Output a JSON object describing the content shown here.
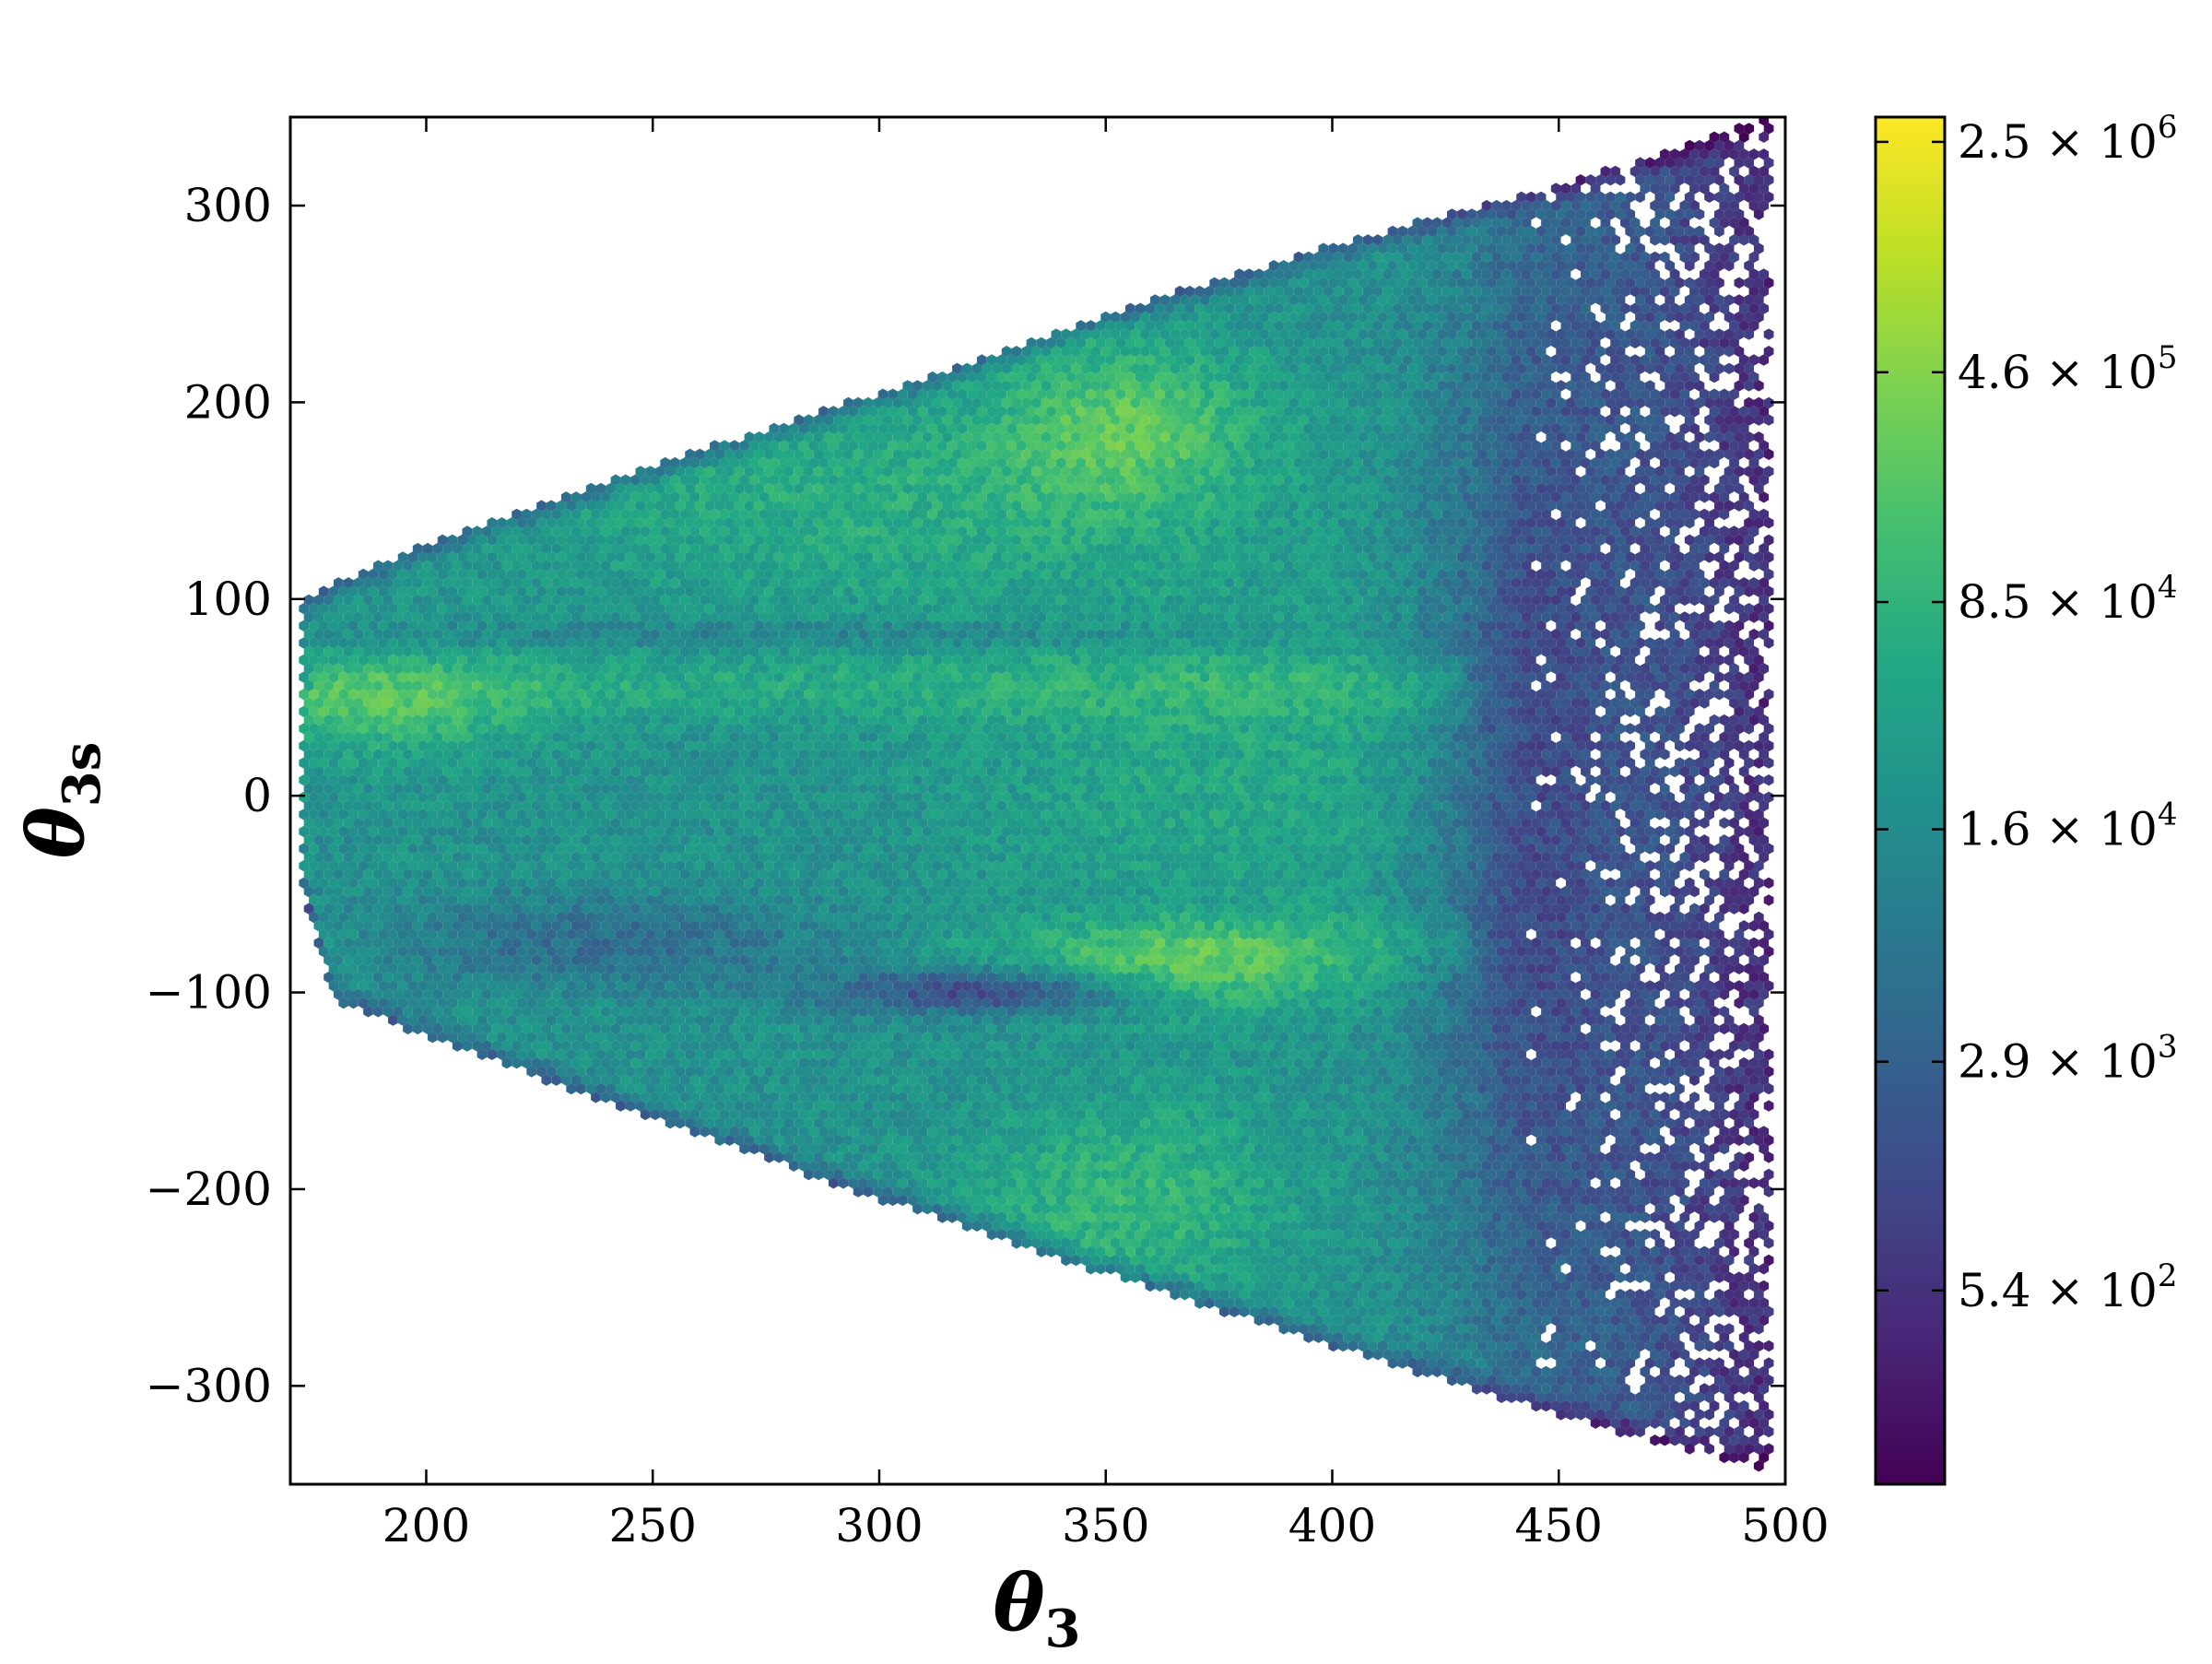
{
  "chart_data": {
    "type": "heatmap",
    "subtype": "hexbin",
    "title": "",
    "xlabel": {
      "symbol": "θ",
      "subscript": "3"
    },
    "ylabel": {
      "symbol": "θ",
      "subscript": "3s"
    },
    "xlim": [
      170,
      500
    ],
    "ylim": [
      -350,
      345
    ],
    "x_ticks": [
      200,
      250,
      300,
      350,
      400,
      450,
      500
    ],
    "y_ticks": [
      -300,
      -200,
      -100,
      0,
      100,
      200,
      300
    ],
    "y_tick_labels": [
      "−300",
      "−200",
      "−100",
      "0",
      "100",
      "200",
      "300"
    ],
    "grid": false,
    "colormap": "viridis",
    "colorbar": {
      "scale": "log",
      "min": 130,
      "max": 3000000,
      "ticks": [
        {
          "value": 2500000,
          "mantissa": "2.5 × 10",
          "exponent": "6"
        },
        {
          "value": 460000,
          "mantissa": "4.6 × 10",
          "exponent": "5"
        },
        {
          "value": 85000,
          "mantissa": "8.5 × 10",
          "exponent": "4"
        },
        {
          "value": 16000,
          "mantissa": "1.6 × 10",
          "exponent": "4"
        },
        {
          "value": 2900,
          "mantissa": "2.9 × 10",
          "exponent": "3"
        },
        {
          "value": 540,
          "mantissa": "5.4 × 10",
          "exponent": "2"
        }
      ]
    },
    "density_model": {
      "region": {
        "x_start": 173,
        "x_end": 497,
        "upper_edge": [
          [
            173,
            100
          ],
          [
            180,
            108
          ],
          [
            200,
            128
          ],
          [
            250,
            168
          ],
          [
            300,
            205
          ],
          [
            350,
            245
          ],
          [
            400,
            280
          ],
          [
            450,
            310
          ],
          [
            497,
            345
          ]
        ],
        "lower_edge": [
          [
            173,
            -50
          ],
          [
            180,
            -105
          ],
          [
            200,
            -122
          ],
          [
            250,
            -165
          ],
          [
            300,
            -205
          ],
          [
            350,
            -243
          ],
          [
            400,
            -280
          ],
          [
            450,
            -315
          ],
          [
            497,
            -345
          ]
        ]
      },
      "base_log_level": 4.3,
      "components": [
        {
          "kind": "blob",
          "x": 190,
          "y": 45,
          "sx": 25,
          "sy": 20,
          "amp": 0.7
        },
        {
          "kind": "blob",
          "x": 355,
          "y": 190,
          "sx": 20,
          "sy": 30,
          "amp": 0.9
        },
        {
          "kind": "blob",
          "x": 300,
          "y": 150,
          "sx": 60,
          "sy": 40,
          "amp": 0.5
        },
        {
          "kind": "blob",
          "x": 370,
          "y": -90,
          "sx": 25,
          "sy": 15,
          "amp": 0.9
        },
        {
          "kind": "blob",
          "x": 355,
          "y": -205,
          "sx": 25,
          "sy": 35,
          "amp": 0.7
        },
        {
          "kind": "blob",
          "x": 380,
          "y": 10,
          "sx": 45,
          "sy": 60,
          "amp": 0.4
        },
        {
          "kind": "band",
          "y": 55,
          "sy": 12,
          "x_from": 175,
          "x_to": 430,
          "amp": 0.4
        },
        {
          "kind": "band",
          "y": -75,
          "sy": 10,
          "x_from": 175,
          "x_to": 430,
          "amp": 0.35
        },
        {
          "kind": "dark",
          "x": 325,
          "y": -100,
          "sx": 25,
          "sy": 8,
          "amp": -1.3
        },
        {
          "kind": "dark",
          "x": 240,
          "y": -75,
          "sx": 45,
          "sy": 14,
          "amp": -1.0
        },
        {
          "kind": "dark",
          "x": 280,
          "y": 82,
          "sx": 80,
          "sy": 5,
          "amp": -0.4
        },
        {
          "kind": "dark",
          "x": 440,
          "y": 0,
          "sx": 15,
          "sy": 200,
          "amp": -1.0
        }
      ],
      "edge_falloff_x": 430,
      "right_sparse_x": 440
    }
  }
}
